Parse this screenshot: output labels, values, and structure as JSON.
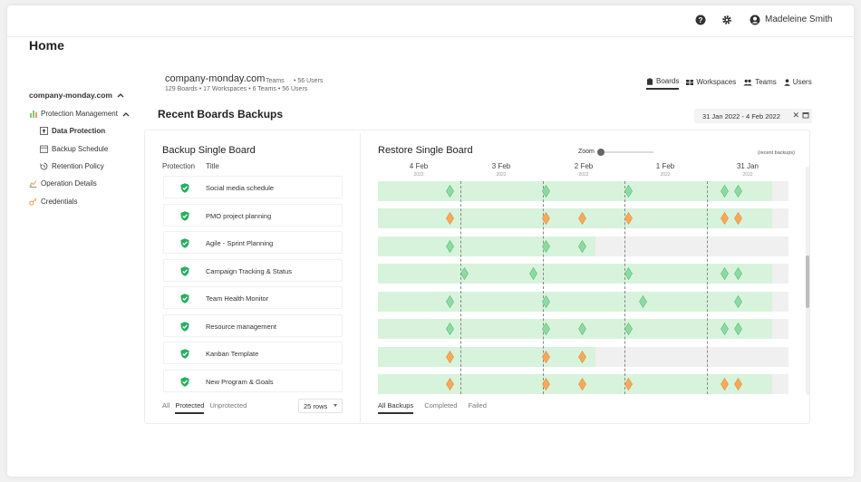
{
  "topbar": {
    "help_icon": "question-circle-icon",
    "settings_icon": "gear-icon",
    "user_icon": "user-circle-icon",
    "user_name": "Madeleine Smith"
  },
  "sidebar": {
    "home": "Home",
    "org": "company-monday.com",
    "items": [
      {
        "label": "Protection Management",
        "icon": "bar-chart-icon"
      },
      {
        "label": "Data Protection",
        "icon": "lock-icon"
      },
      {
        "label": "Backup Schedule",
        "icon": "calendar-icon"
      },
      {
        "label": "Retention Policy",
        "icon": "history-icon"
      },
      {
        "label": "Operation Details",
        "icon": "chart-icon"
      },
      {
        "label": "Credentials",
        "icon": "key-icon"
      }
    ]
  },
  "header": {
    "org_title": "company-monday.com",
    "overlap_teams": "Teams",
    "overlap_users": "• 56 Users",
    "stats": "129 Boards  • 17 Workspaces   • 6 Teams  • 56 Users",
    "tabs": [
      "Boards",
      "Workspaces",
      "Teams",
      "Users"
    ],
    "active_tab": "Boards",
    "section_title": "Recent Boards Backups",
    "date_range": "31 Jan 2022 - 4 Feb 2022",
    "clear_icon": "close-icon",
    "calendar_icon": "calendar-icon"
  },
  "backup_panel": {
    "title": "Backup Single Board",
    "col_protection": "Protection",
    "col_title": "Title",
    "boards": [
      "Social media schedule",
      "PMO project planning",
      "Agile - Sprint Planning",
      "Campaign Tracking & Status",
      "Team Health Monitor",
      "Resource management",
      "Kanban Template",
      "New Program & Goals"
    ],
    "filters": [
      "All",
      "Protected",
      "Unprotected"
    ],
    "active_filter": "Protected",
    "rows_select": "25 rows"
  },
  "restore_panel": {
    "title": "Restore Single Board",
    "zoom_label": "Zoom",
    "recent_note": "(recent backups)",
    "days": [
      {
        "day": "4 Feb",
        "year": "2022"
      },
      {
        "day": "3 Feb",
        "year": "2022"
      },
      {
        "day": "2 Feb",
        "year": "2022"
      },
      {
        "day": "1 Feb",
        "year": "2022"
      },
      {
        "day": "31 Jan",
        "year": "2022"
      }
    ],
    "filters": [
      "All Backups",
      "Completed",
      "Failed"
    ],
    "active_filter": "All Backups",
    "colors": {
      "completed": "#8fd9a4",
      "failed": "#f7a95a",
      "bar": "#d8f3dc"
    },
    "rows": [
      {
        "green_fraction": 0.96,
        "markers": [
          {
            "s": "c",
            "p": 0.175
          },
          {
            "s": "c",
            "p": 0.41
          },
          {
            "s": "c",
            "p": 0.61
          },
          {
            "s": "c",
            "p": 0.845
          },
          {
            "s": "c",
            "p": 0.878
          }
        ]
      },
      {
        "green_fraction": 0.96,
        "markers": [
          {
            "s": "f",
            "p": 0.175
          },
          {
            "s": "f",
            "p": 0.41
          },
          {
            "s": "f",
            "p": 0.497
          },
          {
            "s": "f",
            "p": 0.61
          },
          {
            "s": "f",
            "p": 0.845
          },
          {
            "s": "f",
            "p": 0.878
          }
        ]
      },
      {
        "green_fraction": 0.53,
        "markers": [
          {
            "s": "c",
            "p": 0.175
          },
          {
            "s": "c",
            "p": 0.41
          },
          {
            "s": "c",
            "p": 0.497
          }
        ]
      },
      {
        "green_fraction": 0.96,
        "markers": [
          {
            "s": "c",
            "p": 0.21
          },
          {
            "s": "c",
            "p": 0.378
          },
          {
            "s": "c",
            "p": 0.61
          },
          {
            "s": "c",
            "p": 0.845
          },
          {
            "s": "c",
            "p": 0.878
          }
        ]
      },
      {
        "green_fraction": 0.96,
        "markers": [
          {
            "s": "c",
            "p": 0.175
          },
          {
            "s": "c",
            "p": 0.41
          },
          {
            "s": "c",
            "p": 0.645
          },
          {
            "s": "c",
            "p": 0.878
          }
        ]
      },
      {
        "green_fraction": 0.96,
        "markers": [
          {
            "s": "c",
            "p": 0.175
          },
          {
            "s": "c",
            "p": 0.41
          },
          {
            "s": "c",
            "p": 0.497
          },
          {
            "s": "c",
            "p": 0.61
          },
          {
            "s": "c",
            "p": 0.845
          },
          {
            "s": "c",
            "p": 0.878
          }
        ]
      },
      {
        "green_fraction": 0.53,
        "markers": [
          {
            "s": "f",
            "p": 0.175
          },
          {
            "s": "f",
            "p": 0.41
          },
          {
            "s": "f",
            "p": 0.497
          }
        ]
      },
      {
        "green_fraction": 0.96,
        "markers": [
          {
            "s": "f",
            "p": 0.175
          },
          {
            "s": "f",
            "p": 0.41
          },
          {
            "s": "f",
            "p": 0.497
          },
          {
            "s": "f",
            "p": 0.61
          },
          {
            "s": "f",
            "p": 0.845
          },
          {
            "s": "f",
            "p": 0.878
          }
        ]
      }
    ]
  }
}
